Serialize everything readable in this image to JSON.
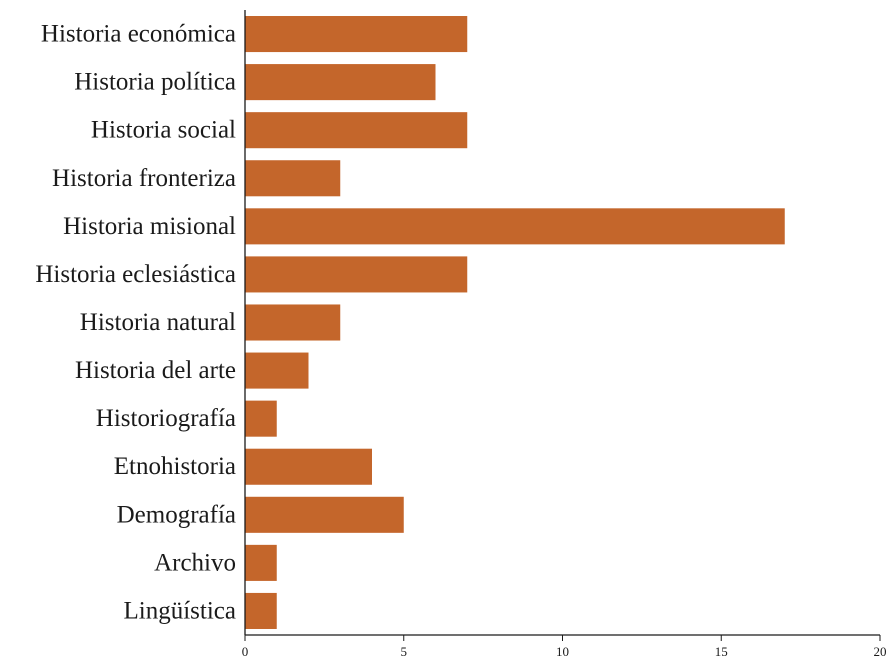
{
  "chart_data": {
    "type": "bar",
    "orientation": "horizontal",
    "categories": [
      "Historia económica",
      "Historia política",
      "Historia social",
      "Historia fronteriza",
      "Historia misional",
      "Historia eclesiástica",
      "Historia natural",
      "Historia del arte",
      "Historiografía",
      "Etnohistoria",
      "Demografía",
      "Archivo",
      "Lingüística"
    ],
    "values": [
      7,
      6,
      7,
      3,
      17,
      7,
      3,
      2,
      1,
      4,
      5,
      1,
      1
    ],
    "xlim": [
      0,
      20
    ],
    "xticks": [
      "0",
      "5",
      "10",
      "15",
      "20"
    ],
    "title": "",
    "xlabel": "",
    "ylabel": "",
    "grid": false,
    "bar_color": "#c4662b"
  }
}
